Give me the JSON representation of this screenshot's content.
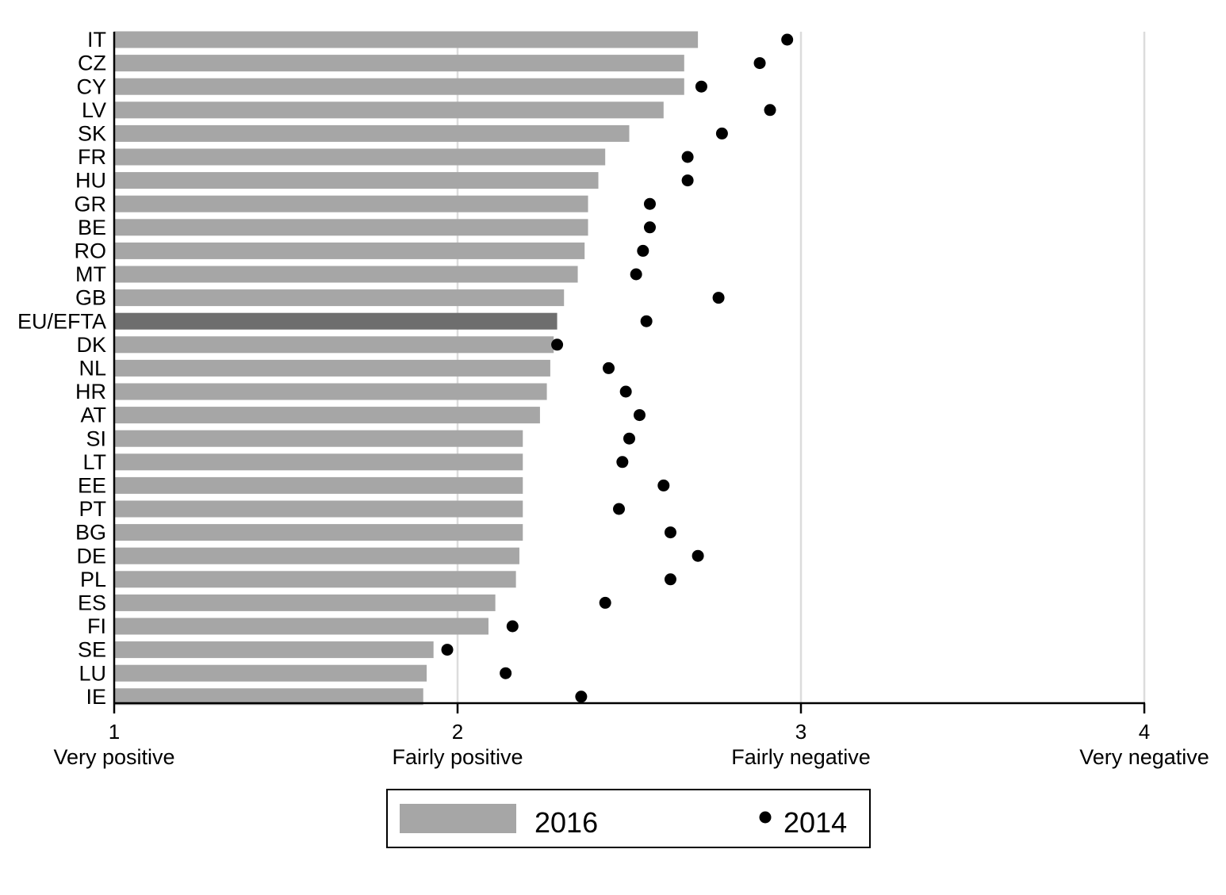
{
  "chart_data": {
    "type": "bar",
    "orientation": "horizontal",
    "categories": [
      "IT",
      "CZ",
      "CY",
      "LV",
      "SK",
      "FR",
      "HU",
      "GR",
      "BE",
      "RO",
      "MT",
      "GB",
      "EU/EFTA",
      "DK",
      "NL",
      "HR",
      "AT",
      "SI",
      "LT",
      "EE",
      "PT",
      "BG",
      "DE",
      "PL",
      "ES",
      "FI",
      "SE",
      "LU",
      "IE"
    ],
    "highlight_category": "EU/EFTA",
    "series": [
      {
        "name": "2016",
        "mark": "bar",
        "color": "#a6a6a6",
        "values": [
          2.7,
          2.66,
          2.66,
          2.6,
          2.5,
          2.43,
          2.41,
          2.38,
          2.38,
          2.37,
          2.35,
          2.31,
          2.29,
          2.28,
          2.27,
          2.26,
          2.24,
          2.19,
          2.19,
          2.19,
          2.19,
          2.19,
          2.18,
          2.17,
          2.11,
          2.09,
          1.93,
          1.91,
          1.9
        ]
      },
      {
        "name": "2014",
        "mark": "dot",
        "color": "#000000",
        "values": [
          2.96,
          2.88,
          2.71,
          2.91,
          2.77,
          2.67,
          2.67,
          2.56,
          2.56,
          2.54,
          2.52,
          2.76,
          2.55,
          2.29,
          2.44,
          2.49,
          2.53,
          2.5,
          2.48,
          2.6,
          2.47,
          2.62,
          2.7,
          2.62,
          2.43,
          2.16,
          1.97,
          2.14,
          2.36
        ]
      }
    ],
    "xlim": [
      1,
      4
    ],
    "x_ticks": [
      {
        "value": 1,
        "label": "1",
        "description": "Very positive"
      },
      {
        "value": 2,
        "label": "2",
        "description": "Fairly positive"
      },
      {
        "value": 3,
        "label": "3",
        "description": "Fairly negative"
      },
      {
        "value": 4,
        "label": "4",
        "description": "Very negative"
      }
    ],
    "grid": true,
    "legend": {
      "placement": "bottom",
      "entries": [
        {
          "label": "2016",
          "mark": "bar"
        },
        {
          "label": "2014",
          "mark": "dot"
        }
      ]
    },
    "colors": {
      "bar": "#a6a6a6",
      "bar_highlight": "#6e6e6e",
      "dot": "#000000",
      "grid": "#dcdcdc",
      "axis": "#000000"
    }
  }
}
